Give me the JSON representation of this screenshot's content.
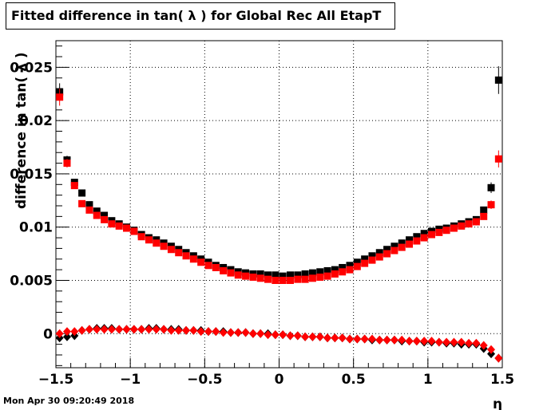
{
  "page": {
    "title": "Fitted difference in tan( λ ) for Global Rec All EtapT",
    "timestamp": "Mon Apr 30 09:20:49 2018"
  },
  "chart_data": {
    "type": "scatter",
    "title": "Fitted difference in tan( λ ) for Global Rec All EtapT",
    "xlabel": "η",
    "ylabel": "difference in tan( λ )",
    "xlim": [
      -1.5,
      1.5
    ],
    "ylim": [
      -0.0032,
      0.0275
    ],
    "grid": true,
    "x_ticks": [
      -1.5,
      -1,
      -0.5,
      0,
      0.5,
      1,
      1.5
    ],
    "x_tick_labels": [
      "−1.5",
      "−1",
      "−0.5",
      "0",
      "0.5",
      "1",
      "1.5"
    ],
    "y_ticks": [
      0,
      0.005,
      0.01,
      0.015,
      0.02,
      0.025
    ],
    "y_tick_labels": [
      "0",
      "0.005",
      "0.01",
      "0.015",
      "0.02",
      "0.025"
    ],
    "x": [
      -1.475,
      -1.425,
      -1.375,
      -1.325,
      -1.275,
      -1.225,
      -1.175,
      -1.125,
      -1.075,
      -1.025,
      -0.975,
      -0.925,
      -0.875,
      -0.825,
      -0.775,
      -0.725,
      -0.675,
      -0.625,
      -0.575,
      -0.525,
      -0.475,
      -0.425,
      -0.375,
      -0.325,
      -0.275,
      -0.225,
      -0.175,
      -0.125,
      -0.075,
      -0.025,
      0.025,
      0.075,
      0.125,
      0.175,
      0.225,
      0.275,
      0.325,
      0.375,
      0.425,
      0.475,
      0.525,
      0.575,
      0.625,
      0.675,
      0.725,
      0.775,
      0.825,
      0.875,
      0.925,
      0.975,
      1.025,
      1.075,
      1.125,
      1.175,
      1.225,
      1.275,
      1.325,
      1.375,
      1.425,
      1.475
    ],
    "series": [
      {
        "color": "#000000",
        "marker": "square",
        "values": [
          0.0227,
          0.0163,
          0.0142,
          0.0132,
          0.0121,
          0.0115,
          0.0111,
          0.0106,
          0.0103,
          0.01,
          0.0097,
          0.0093,
          0.009,
          0.0088,
          0.0085,
          0.0082,
          0.0079,
          0.0076,
          0.0073,
          0.007,
          0.0067,
          0.0064,
          0.0062,
          0.006,
          0.0058,
          0.0057,
          0.0056,
          0.0056,
          0.0055,
          0.0055,
          0.0054,
          0.0055,
          0.0055,
          0.0056,
          0.0057,
          0.0058,
          0.0059,
          0.006,
          0.0062,
          0.0064,
          0.0067,
          0.007,
          0.0073,
          0.0076,
          0.0079,
          0.0082,
          0.0085,
          0.0088,
          0.0091,
          0.0094,
          0.0096,
          0.0098,
          0.0099,
          0.0101,
          0.0103,
          0.0105,
          0.0107,
          0.0116,
          0.0137,
          0.0238
        ],
        "errors": [
          0.0008,
          0.0004,
          0.0003,
          0.0002,
          0.0002,
          0.0002,
          0.0001,
          0.0001,
          0.0001,
          0.0001,
          0.0001,
          0.0001,
          0.0001,
          0.0001,
          0.0001,
          0.0001,
          0.0001,
          0.0001,
          0.0001,
          0.0001,
          0.0001,
          0.0001,
          0.0001,
          0.0001,
          0.0001,
          0.0001,
          0.0001,
          0.0001,
          0.0001,
          0.0001,
          0.0001,
          0.0001,
          0.0001,
          0.0001,
          0.0001,
          0.0001,
          0.0001,
          0.0001,
          0.0001,
          0.0001,
          0.0001,
          0.0001,
          0.0001,
          0.0001,
          0.0001,
          0.0001,
          0.0001,
          0.0001,
          0.0001,
          0.0001,
          0.0001,
          0.0001,
          0.0001,
          0.0001,
          0.0001,
          0.0001,
          0.0001,
          0.0002,
          0.0005,
          0.0013
        ]
      },
      {
        "color": "#ff0000",
        "marker": "square",
        "values": [
          0.0222,
          0.016,
          0.0139,
          0.0122,
          0.0116,
          0.0111,
          0.0107,
          0.0103,
          0.0101,
          0.0099,
          0.0096,
          0.0091,
          0.0088,
          0.0085,
          0.0082,
          0.0079,
          0.0076,
          0.0073,
          0.007,
          0.0067,
          0.0064,
          0.0062,
          0.0059,
          0.0057,
          0.0055,
          0.0054,
          0.0053,
          0.0052,
          0.0051,
          0.005,
          0.005,
          0.005,
          0.0051,
          0.0051,
          0.0052,
          0.0053,
          0.0054,
          0.0056,
          0.0058,
          0.006,
          0.0063,
          0.0066,
          0.0069,
          0.0072,
          0.0075,
          0.0078,
          0.0081,
          0.0084,
          0.0087,
          0.009,
          0.0093,
          0.0095,
          0.0097,
          0.0099,
          0.0101,
          0.0103,
          0.0105,
          0.011,
          0.0121,
          0.0164
        ],
        "errors": [
          0.0008,
          0.0004,
          0.0003,
          0.0002,
          0.0002,
          0.0002,
          0.0001,
          0.0001,
          0.0001,
          0.0001,
          0.0001,
          0.0001,
          0.0001,
          0.0001,
          0.0001,
          0.0001,
          0.0001,
          0.0001,
          0.0001,
          0.0001,
          0.0001,
          0.0001,
          0.0001,
          0.0001,
          0.0001,
          0.0001,
          0.0001,
          0.0001,
          0.0001,
          0.0001,
          0.0001,
          0.0001,
          0.0001,
          0.0001,
          0.0001,
          0.0001,
          0.0001,
          0.0001,
          0.0001,
          0.0001,
          0.0001,
          0.0001,
          0.0001,
          0.0001,
          0.0001,
          0.0001,
          0.0001,
          0.0001,
          0.0001,
          0.0001,
          0.0001,
          0.0001,
          0.0001,
          0.0001,
          0.0001,
          0.0001,
          0.0001,
          0.0002,
          0.0004,
          0.0008
        ]
      },
      {
        "color": "#000000",
        "marker": "diamond",
        "values": [
          -0.0004,
          -0.0003,
          -0.0002,
          0.0003,
          0.0004,
          0.0005,
          0.0005,
          0.0005,
          0.0004,
          0.0004,
          0.0004,
          0.0004,
          0.0005,
          0.0005,
          0.0004,
          0.0004,
          0.0004,
          0.0003,
          0.0003,
          0.0003,
          0.0002,
          0.0002,
          0.0002,
          0.0001,
          0.0001,
          0.0001,
          0.0,
          0.0,
          0.0,
          -0.0001,
          -0.0001,
          -0.0002,
          -0.0002,
          -0.0003,
          -0.0003,
          -0.0003,
          -0.0004,
          -0.0004,
          -0.0004,
          -0.0005,
          -0.0005,
          -0.0005,
          -0.0006,
          -0.0006,
          -0.0006,
          -0.0006,
          -0.0007,
          -0.0007,
          -0.0007,
          -0.0008,
          -0.0008,
          -0.0008,
          -0.0009,
          -0.0009,
          -0.001,
          -0.001,
          -0.001,
          -0.0014,
          -0.0019,
          -0.0023
        ],
        "errors": [
          0.0003,
          0.0002,
          0.0002,
          0.0001,
          0.0001,
          0.0001,
          0.0001,
          0.0001,
          0.0001,
          0.0001,
          0.0001,
          0.0001,
          0.0001,
          0.0001,
          0.0001,
          0.0001,
          0.0001,
          0.0001,
          0.0001,
          0.0001,
          0.0001,
          0.0001,
          0.0001,
          0.0001,
          0.0001,
          0.0001,
          0.0001,
          0.0001,
          0.0001,
          0.0001,
          0.0001,
          0.0001,
          0.0001,
          0.0001,
          0.0001,
          0.0001,
          0.0001,
          0.0001,
          0.0001,
          0.0001,
          0.0001,
          0.0001,
          0.0001,
          0.0001,
          0.0001,
          0.0001,
          0.0001,
          0.0001,
          0.0001,
          0.0001,
          0.0001,
          0.0001,
          0.0001,
          0.0001,
          0.0001,
          0.0001,
          0.0001,
          0.0001,
          0.0002,
          0.0003
        ]
      },
      {
        "color": "#ff0000",
        "marker": "diamond",
        "values": [
          0.0,
          0.0002,
          0.0002,
          0.0003,
          0.0004,
          0.0004,
          0.0004,
          0.0004,
          0.0004,
          0.0004,
          0.0004,
          0.0004,
          0.0004,
          0.0004,
          0.0004,
          0.0003,
          0.0003,
          0.0003,
          0.0003,
          0.0002,
          0.0002,
          0.0002,
          0.0001,
          0.0001,
          0.0001,
          0.0001,
          0.0,
          0.0,
          -0.0001,
          -0.0001,
          -0.0001,
          -0.0002,
          -0.0002,
          -0.0003,
          -0.0003,
          -0.0003,
          -0.0004,
          -0.0004,
          -0.0004,
          -0.0005,
          -0.0005,
          -0.0005,
          -0.0005,
          -0.0006,
          -0.0006,
          -0.0006,
          -0.0006,
          -0.0007,
          -0.0007,
          -0.0007,
          -0.0007,
          -0.0008,
          -0.0008,
          -0.0008,
          -0.0008,
          -0.0009,
          -0.0009,
          -0.0011,
          -0.0015,
          -0.0023
        ],
        "errors": [
          0.0003,
          0.0002,
          0.0002,
          0.0001,
          0.0001,
          0.0001,
          0.0001,
          0.0001,
          0.0001,
          0.0001,
          0.0001,
          0.0001,
          0.0001,
          0.0001,
          0.0001,
          0.0001,
          0.0001,
          0.0001,
          0.0001,
          0.0001,
          0.0001,
          0.0001,
          0.0001,
          0.0001,
          0.0001,
          0.0001,
          0.0001,
          0.0001,
          0.0001,
          0.0001,
          0.0001,
          0.0001,
          0.0001,
          0.0001,
          0.0001,
          0.0001,
          0.0001,
          0.0001,
          0.0001,
          0.0001,
          0.0001,
          0.0001,
          0.0001,
          0.0001,
          0.0001,
          0.0001,
          0.0001,
          0.0001,
          0.0001,
          0.0001,
          0.0001,
          0.0001,
          0.0001,
          0.0001,
          0.0001,
          0.0001,
          0.0001,
          0.0001,
          0.0002,
          0.0004
        ]
      }
    ]
  }
}
